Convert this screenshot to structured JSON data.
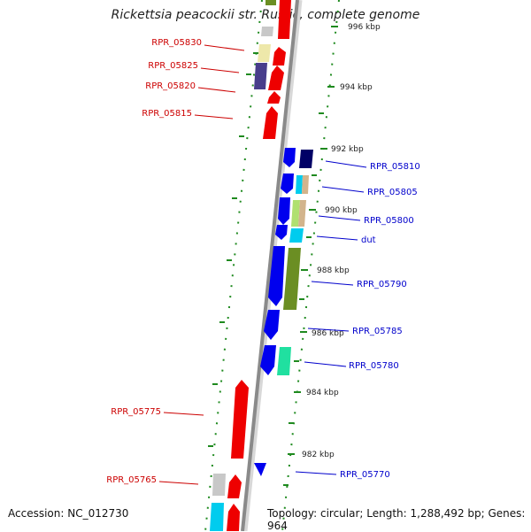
{
  "title": "Rickettsia peacockii str. Rustic, complete genome",
  "accession_text": "Accession: NC_012730",
  "summary_text": "Topology: circular; Length: 1,288,492 bp; Genes: 964",
  "colors": {
    "backbone": "#9a9a9a",
    "ruler": "#1f8a1f",
    "label_forward": "#cc0000",
    "label_reverse": "#0000cc",
    "red": "#ee0000",
    "blue": "#0000ee",
    "olive": "#6b8e23",
    "cyan": "#00ccee",
    "navy": "#000066",
    "grey": "#c8c8c8",
    "khaki": "#eee8aa",
    "slate": "#483d8b",
    "mint": "#20e0a0",
    "lime": "#b0e070",
    "tan": "#d2b48c"
  },
  "ticks": [
    "996 kbp",
    "994 kbp",
    "992 kbp",
    "990 kbp",
    "988 kbp",
    "986 kbp",
    "984 kbp",
    "982 kbp"
  ],
  "forward_labels": [
    "RPR_05830",
    "RPR_05825",
    "RPR_05820",
    "RPR_05815",
    "RPR_05775",
    "RPR_05765"
  ],
  "reverse_labels": [
    "RPR_05810",
    "RPR_05805",
    "RPR_05800",
    "dut",
    "RPR_05790",
    "RPR_05785",
    "RPR_05780",
    "RPR_05770"
  ]
}
